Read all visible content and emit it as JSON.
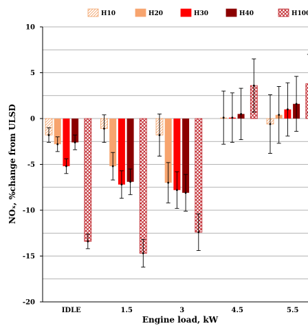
{
  "chart_data": {
    "type": "bar",
    "xlabel": "Engine load, kW",
    "ylabel": "NOₓ, %change from ULSD",
    "ylim": [
      -20,
      10
    ],
    "y_ticks": [
      -20,
      -15,
      -10,
      -5,
      0,
      5,
      10
    ],
    "categories": [
      "IDLE",
      "1.5",
      "3",
      "4.5",
      "5.5"
    ],
    "grid": "horizontal, every 2.5",
    "legend_position": "top",
    "series": [
      {
        "name": "H10",
        "color": "#fde2cf",
        "pattern": "diagonal-hatch",
        "values": [
          -1.8,
          -1.1,
          -1.8,
          null,
          -0.6
        ],
        "errors": [
          0.8,
          1.5,
          2.3,
          null,
          3.2
        ]
      },
      {
        "name": "H20",
        "color": "#f7a46e",
        "pattern": "solid",
        "values": [
          -2.8,
          -5.2,
          -7.0,
          0.1,
          0.4
        ],
        "errors": [
          0.8,
          1.5,
          2.2,
          2.9,
          3.1
        ]
      },
      {
        "name": "H30",
        "color": "#ff0000",
        "pattern": "solid",
        "values": [
          -5.2,
          -7.2,
          -7.8,
          0.1,
          1.0
        ],
        "errors": [
          0.8,
          1.5,
          2.0,
          2.7,
          2.9
        ]
      },
      {
        "name": "H40",
        "color": "#8b0000",
        "pattern": "solid",
        "values": [
          -2.6,
          -6.9,
          -8.1,
          0.5,
          1.6
        ],
        "errors": [
          0.8,
          1.4,
          2.0,
          2.8,
          3.0
        ]
      },
      {
        "name": "H100",
        "color": "#c0504d",
        "pattern": "cross-hatch",
        "values": [
          -13.4,
          -14.7,
          -12.4,
          3.6,
          3.8
        ],
        "errors": [
          0.8,
          1.5,
          2.0,
          2.9,
          3.2
        ]
      }
    ]
  }
}
